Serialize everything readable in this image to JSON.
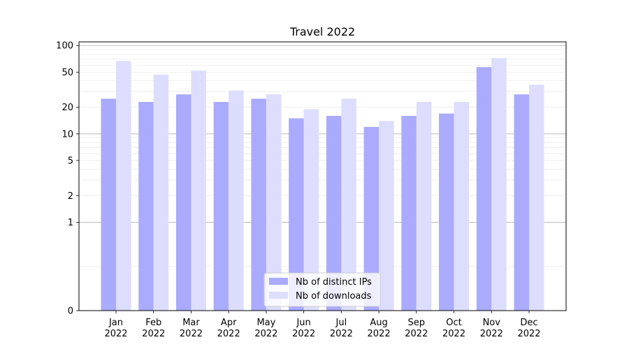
{
  "chart_data": {
    "type": "bar",
    "title": "Travel 2022",
    "xlabel": "",
    "ylabel": "",
    "y_scale": "symlog",
    "ylim": [
      0,
      110
    ],
    "y_ticks": [
      0,
      1,
      2,
      5,
      10,
      20,
      50,
      100
    ],
    "grid": true,
    "legend_position": "bottom-center",
    "categories": [
      [
        "Jan",
        "2022"
      ],
      [
        "Feb",
        "2022"
      ],
      [
        "Mar",
        "2022"
      ],
      [
        "Apr",
        "2022"
      ],
      [
        "May",
        "2022"
      ],
      [
        "Jun",
        "2022"
      ],
      [
        "Jul",
        "2022"
      ],
      [
        "Aug",
        "2022"
      ],
      [
        "Sep",
        "2022"
      ],
      [
        "Oct",
        "2022"
      ],
      [
        "Nov",
        "2022"
      ],
      [
        "Dec",
        "2022"
      ]
    ],
    "series": [
      {
        "name": "Nb of distinct IPs",
        "color": "#aaaaff",
        "values": [
          25,
          23,
          28,
          23,
          25,
          15,
          16,
          12,
          16,
          17,
          57,
          28
        ]
      },
      {
        "name": "Nb of downloads",
        "color": "#ddddff",
        "values": [
          67,
          47,
          52,
          31,
          28,
          19,
          25,
          14,
          23,
          23,
          72,
          36
        ]
      }
    ]
  }
}
